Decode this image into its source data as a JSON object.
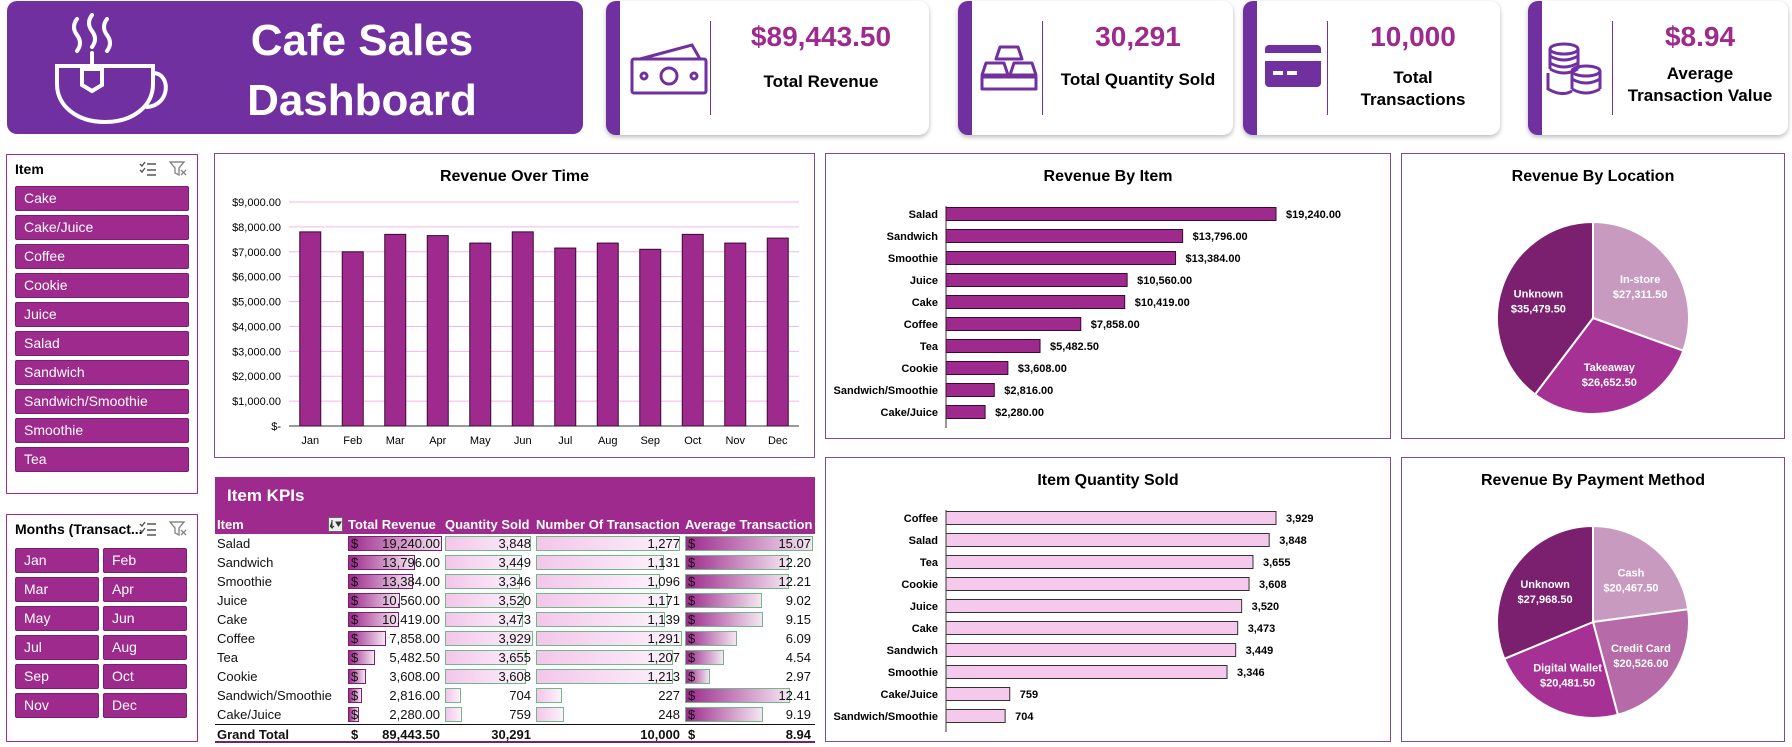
{
  "banner": {
    "title_line1": "Cafe Sales",
    "title_line2": "Dashboard",
    "icon": "coffee-cup-icon"
  },
  "kpis": [
    {
      "value": "$89,443.50",
      "label_lines": [
        "Total Revenue"
      ],
      "icon": "money-icon"
    },
    {
      "value": "30,291",
      "label_lines": [
        "Total Quantity Sold"
      ],
      "icon": "gold-bars-icon"
    },
    {
      "value": "10,000",
      "label_lines": [
        "Total",
        "Transactions"
      ],
      "icon": "credit-card-icon"
    },
    {
      "value": "$8.94",
      "label_lines": [
        "Average",
        "Transaction Value"
      ],
      "icon": "coins-icon"
    }
  ],
  "item_slicer": {
    "header": "Item",
    "items": [
      "Cake",
      "Cake/Juice",
      "Coffee",
      "Cookie",
      "Juice",
      "Salad",
      "Sandwich",
      "Sandwich/Smoothie",
      "Smoothie",
      "Tea"
    ]
  },
  "month_slicer": {
    "header": "Months (Transact...",
    "items": [
      "Jan",
      "Feb",
      "Mar",
      "Apr",
      "May",
      "Jun",
      "Jul",
      "Aug",
      "Sep",
      "Oct",
      "Nov",
      "Dec"
    ]
  },
  "colors": {
    "purple": "#7030a0",
    "magenta": "#9d2a8c",
    "light_pink": "#f1c8e8",
    "pie_dark": "#7b1f6f",
    "pie_mid": "#a53194",
    "pie_light": "#c99ac0"
  },
  "item_kpis": {
    "title": "Item KPIs",
    "columns": [
      "Item",
      "Total Revenue",
      "Quantity Sold",
      "Number Of Transaction",
      "Average Transaction"
    ],
    "rows": [
      {
        "item": "Salad",
        "revenue": "19,240.00",
        "qty": "3,848",
        "txn": "1,277",
        "avg": "15.07"
      },
      {
        "item": "Sandwich",
        "revenue": "13,796.00",
        "qty": "3,449",
        "txn": "1,131",
        "avg": "12.20"
      },
      {
        "item": "Smoothie",
        "revenue": "13,384.00",
        "qty": "3,346",
        "txn": "1,096",
        "avg": "12.21"
      },
      {
        "item": "Juice",
        "revenue": "10,560.00",
        "qty": "3,520",
        "txn": "1,171",
        "avg": "9.02"
      },
      {
        "item": "Cake",
        "revenue": "10,419.00",
        "qty": "3,473",
        "txn": "1,139",
        "avg": "9.15"
      },
      {
        "item": "Coffee",
        "revenue": "7,858.00",
        "qty": "3,929",
        "txn": "1,291",
        "avg": "6.09"
      },
      {
        "item": "Tea",
        "revenue": "5,482.50",
        "qty": "3,655",
        "txn": "1,207",
        "avg": "4.54"
      },
      {
        "item": "Cookie",
        "revenue": "3,608.00",
        "qty": "3,608",
        "txn": "1,213",
        "avg": "2.97"
      },
      {
        "item": "Sandwich/Smoothie",
        "revenue": "2,816.00",
        "qty": "704",
        "txn": "227",
        "avg": "12.41"
      },
      {
        "item": "Cake/Juice",
        "revenue": "2,280.00",
        "qty": "759",
        "txn": "248",
        "avg": "9.19"
      }
    ],
    "grand_total": {
      "label": "Grand Total",
      "revenue": "89,443.50",
      "qty": "30,291",
      "txn": "10,000",
      "avg": "8.94"
    },
    "currency": "$"
  },
  "chart_data": [
    {
      "type": "bar",
      "title": "Revenue Over Time",
      "categories": [
        "Jan",
        "Feb",
        "Mar",
        "Apr",
        "May",
        "Jun",
        "Jul",
        "Aug",
        "Sep",
        "Oct",
        "Nov",
        "Dec"
      ],
      "values": [
        7800,
        7000,
        7700,
        7650,
        7350,
        7800,
        7150,
        7350,
        7100,
        7700,
        7350,
        7550
      ],
      "ytick_labels": [
        "$-",
        "$1,000.00",
        "$2,000.00",
        "$3,000.00",
        "$4,000.00",
        "$5,000.00",
        "$6,000.00",
        "$7,000.00",
        "$8,000.00",
        "$9,000.00"
      ],
      "ylim": [
        0,
        9000
      ],
      "grid": true
    },
    {
      "type": "bar",
      "orientation": "horizontal",
      "title": "Revenue By Item",
      "categories": [
        "Salad",
        "Sandwich",
        "Smoothie",
        "Juice",
        "Cake",
        "Coffee",
        "Tea",
        "Cookie",
        "Sandwich/Smoothie",
        "Cake/Juice"
      ],
      "values": [
        19240,
        13796,
        13384,
        10560,
        10419,
        7858,
        5482.5,
        3608,
        2816,
        2280
      ],
      "labels": [
        "$19,240.00",
        "$13,796.00",
        "$13,384.00",
        "$10,560.00",
        "$10,419.00",
        "$7,858.00",
        "$5,482.50",
        "$3,608.00",
        "$2,816.00",
        "$2,280.00"
      ]
    },
    {
      "type": "pie",
      "title": "Revenue By Location",
      "categories": [
        "In-store",
        "Takeaway",
        "Unknown"
      ],
      "values": [
        27311.5,
        26652.5,
        35479.5
      ],
      "labels": [
        "$27,311.50",
        "$26,652.50",
        "$35,479.50"
      ]
    },
    {
      "type": "bar",
      "orientation": "horizontal",
      "title": "Item Quantity Sold",
      "categories": [
        "Coffee",
        "Salad",
        "Tea",
        "Cookie",
        "Juice",
        "Cake",
        "Sandwich",
        "Smoothie",
        "Cake/Juice",
        "Sandwich/Smoothie"
      ],
      "values": [
        3929,
        3848,
        3655,
        3608,
        3520,
        3473,
        3449,
        3346,
        759,
        704
      ],
      "labels": [
        "3,929",
        "3,848",
        "3,655",
        "3,608",
        "3,520",
        "3,473",
        "3,449",
        "3,346",
        "759",
        "704"
      ]
    },
    {
      "type": "pie",
      "title": "Revenue By Payment Method",
      "categories": [
        "Cash",
        "Credit Card",
        "Digital Wallet",
        "Unknown"
      ],
      "values": [
        20467.5,
        20526,
        20481.5,
        27968.5
      ],
      "labels": [
        "$20,467.50",
        "$20,526.00",
        "$20,481.50",
        "$27,968.50"
      ]
    }
  ]
}
